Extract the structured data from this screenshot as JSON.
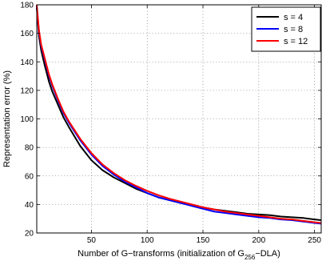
{
  "chart_data": {
    "type": "line",
    "title": "",
    "xlabel": "Number of G−transforms (initialization of G",
    "xlabel_subscript": "256",
    "xlabel_suffix": "−DLA)",
    "ylabel": "Representation error (%)",
    "xlim": [
      1,
      256
    ],
    "ylim": [
      20,
      180
    ],
    "xticks": [
      50,
      100,
      150,
      200,
      250
    ],
    "xtick_labels": [
      "50",
      "100",
      "150",
      "200",
      "250"
    ],
    "yticks": [
      20,
      40,
      60,
      80,
      100,
      120,
      140,
      160,
      180
    ],
    "ytick_labels": [
      "20",
      "40",
      "60",
      "80",
      "100",
      "120",
      "140",
      "160",
      "180"
    ],
    "grid": true,
    "legend_position": "top-right",
    "series": [
      {
        "name": "s = 4",
        "color": "#000000",
        "x": [
          1,
          2,
          3,
          5,
          8,
          10,
          12,
          15,
          20,
          25,
          30,
          40,
          50,
          60,
          70,
          80,
          90,
          100,
          110,
          120,
          130,
          140,
          150,
          160,
          170,
          180,
          190,
          200,
          210,
          220,
          230,
          240,
          250,
          256
        ],
        "y": [
          178,
          168,
          158,
          148,
          138,
          132,
          126,
          119,
          110,
          101,
          94,
          81,
          71,
          64,
          59,
          55,
          51,
          48,
          45,
          43,
          41,
          39.5,
          38,
          36.5,
          35.5,
          34.5,
          33.5,
          33,
          32.5,
          31.5,
          31,
          30.5,
          29.5,
          29
        ]
      },
      {
        "name": "s = 8",
        "color": "#0000ff",
        "x": [
          1,
          2,
          3,
          5,
          8,
          10,
          12,
          15,
          20,
          25,
          30,
          40,
          50,
          60,
          70,
          80,
          90,
          100,
          110,
          120,
          130,
          140,
          150,
          160,
          170,
          180,
          190,
          200,
          210,
          220,
          230,
          240,
          250,
          256
        ],
        "y": [
          179,
          170,
          161,
          151,
          142,
          136,
          130,
          123,
          113,
          104,
          97,
          85,
          75,
          67,
          61,
          56,
          52,
          48,
          45,
          43,
          41,
          39,
          37,
          35,
          34,
          33,
          32,
          31,
          30.5,
          29.5,
          29,
          28,
          27,
          26.5
        ]
      },
      {
        "name": "s = 12",
        "color": "#ff0000",
        "x": [
          1,
          2,
          3,
          5,
          8,
          10,
          12,
          15,
          20,
          25,
          30,
          40,
          50,
          60,
          70,
          80,
          90,
          100,
          110,
          120,
          130,
          140,
          150,
          160,
          170,
          180,
          190,
          200,
          210,
          220,
          230,
          240,
          250,
          256
        ],
        "y": [
          180,
          171,
          162,
          152,
          143,
          137,
          131,
          124,
          114,
          105,
          98,
          86,
          76,
          68,
          62,
          57,
          53,
          49.5,
          46.5,
          44,
          42,
          40,
          38,
          36.5,
          35,
          34,
          33,
          32,
          31,
          30,
          29.5,
          28.5,
          27.5,
          27
        ]
      }
    ]
  }
}
